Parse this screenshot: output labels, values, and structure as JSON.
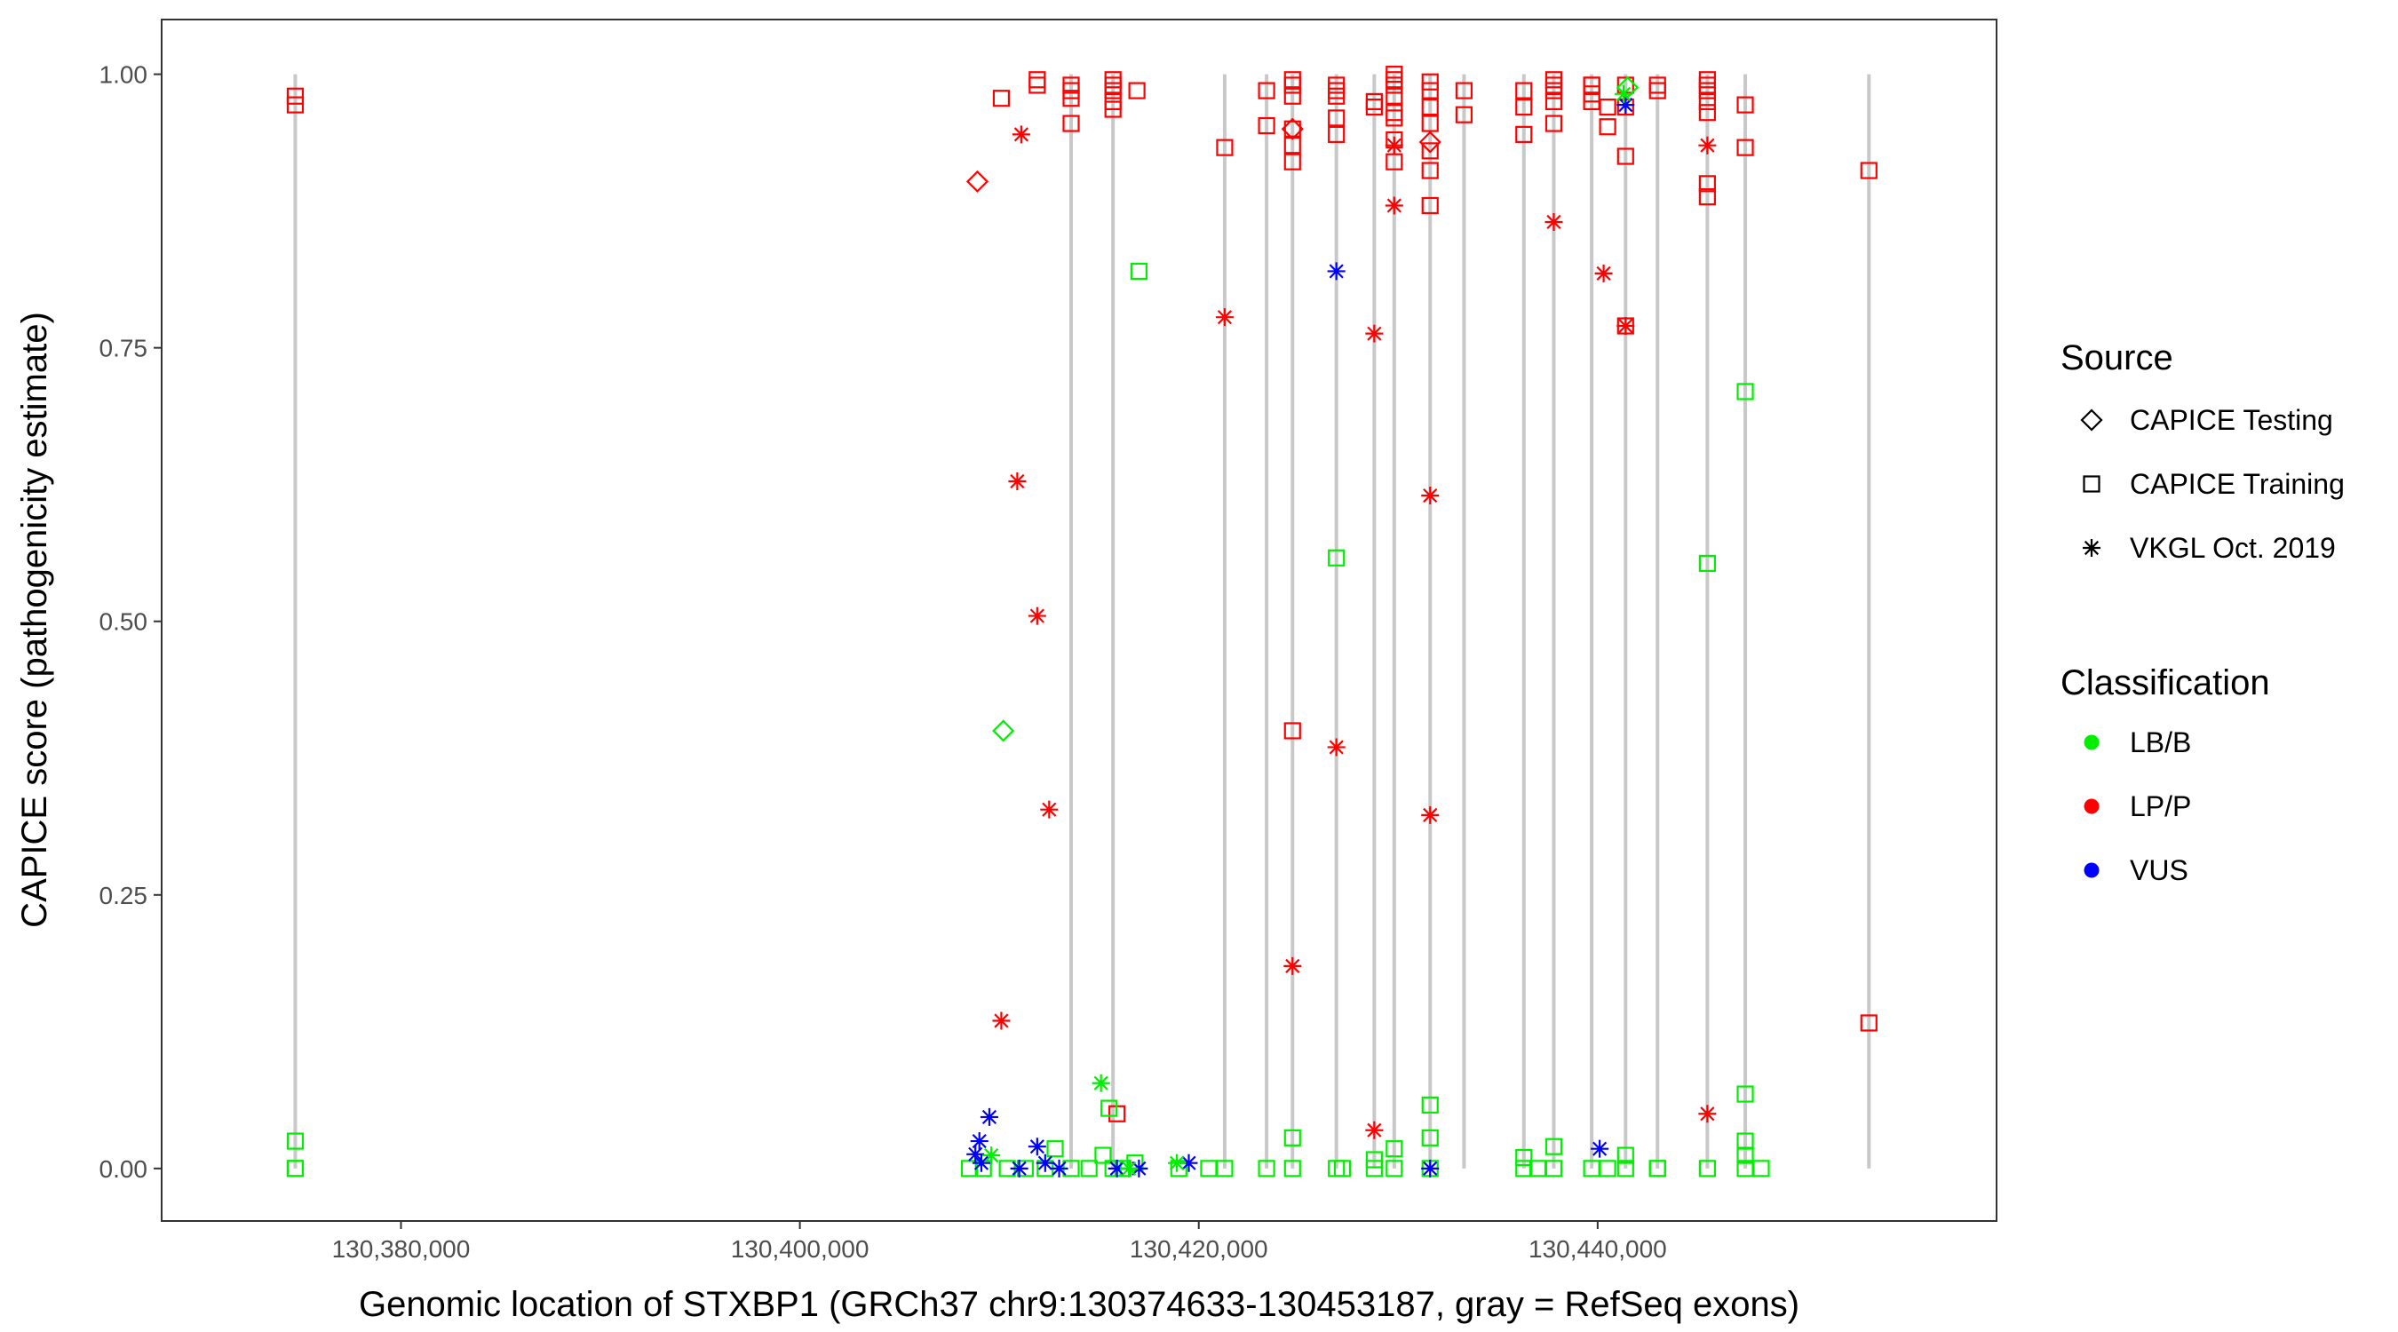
{
  "chart_data": {
    "type": "scatter",
    "title": "",
    "xlabel": "Genomic location of STXBP1 (GRCh37 chr9:130374633-130453187, gray = RefSeq exons)",
    "ylabel": "CAPICE score (pathogenicity estimate)",
    "xlim": [
      130368000,
      130460000
    ],
    "ylim": [
      -0.048,
      1.05
    ],
    "x_ticks": [
      130380000,
      130400000,
      130420000,
      130440000
    ],
    "x_tick_labels": [
      "130,380,000",
      "130,400,000",
      "130,420,000",
      "130,440,000"
    ],
    "y_ticks": [
      0,
      0.25,
      0.5,
      0.75,
      1
    ],
    "y_tick_labels": [
      "0.00",
      "0.25",
      "0.50",
      "0.75",
      "1.00"
    ],
    "grid": false,
    "exons": [
      130374700,
      130413600,
      130415700,
      130421300,
      130423400,
      130424700,
      130426900,
      130428800,
      130429800,
      130431600,
      130433300,
      130436300,
      130437800,
      130439700,
      130441400,
      130443000,
      130445500,
      130447400,
      130453600
    ],
    "legend": {
      "source_title": "Source",
      "source_entries": [
        {
          "label": "CAPICE Testing",
          "shape": "diamond"
        },
        {
          "label": "CAPICE Training",
          "shape": "square"
        },
        {
          "label": "VKGL Oct. 2019",
          "shape": "asterisk"
        }
      ],
      "class_title": "Classification",
      "class_entries": [
        {
          "label": "LB/B",
          "color": "#00ee00"
        },
        {
          "label": "LP/P",
          "color": "#ff0000"
        },
        {
          "label": "VUS",
          "color": "#0000ff"
        }
      ]
    },
    "series": [
      {
        "source": "CAPICE Training",
        "classification": "LP/P",
        "points": [
          [
            130374700,
            0.98
          ],
          [
            130374700,
            0.972
          ],
          [
            130410100,
            0.978
          ],
          [
            130411900,
            0.99
          ],
          [
            130411900,
            0.995
          ],
          [
            130413600,
            0.955
          ],
          [
            130413600,
            0.978
          ],
          [
            130413600,
            0.99
          ],
          [
            130413600,
            0.985
          ],
          [
            130415700,
            0.975
          ],
          [
            130415700,
            0.99
          ],
          [
            130415700,
            0.985
          ],
          [
            130415700,
            0.968
          ],
          [
            130415700,
            0.995
          ],
          [
            130416900,
            0.985
          ],
          [
            130415900,
            0.05
          ],
          [
            130421300,
            0.933
          ],
          [
            130423400,
            0.953
          ],
          [
            130423400,
            0.985
          ],
          [
            130424700,
            0.95
          ],
          [
            130424700,
            0.935
          ],
          [
            130424700,
            0.92
          ],
          [
            130424700,
            0.98
          ],
          [
            130424700,
            0.99
          ],
          [
            130424700,
            0.995
          ],
          [
            130424700,
            0.4
          ],
          [
            130426900,
            0.945
          ],
          [
            130426900,
            0.96
          ],
          [
            130426900,
            0.98
          ],
          [
            130426900,
            0.985
          ],
          [
            130426900,
            0.99
          ],
          [
            130428800,
            0.97
          ],
          [
            130428800,
            0.975
          ],
          [
            130429800,
            0.92
          ],
          [
            130429800,
            0.94
          ],
          [
            130429800,
            0.96
          ],
          [
            130429800,
            0.965
          ],
          [
            130429800,
            0.98
          ],
          [
            130429800,
            0.99
          ],
          [
            130429800,
            0.995
          ],
          [
            130429800,
            1.0
          ],
          [
            130431600,
            0.993
          ],
          [
            130431600,
            0.985
          ],
          [
            130431600,
            0.97
          ],
          [
            130431600,
            0.955
          ],
          [
            130431600,
            0.93
          ],
          [
            130431600,
            0.912
          ],
          [
            130431600,
            0.88
          ],
          [
            130433300,
            0.963
          ],
          [
            130433300,
            0.985
          ],
          [
            130436300,
            0.945
          ],
          [
            130436300,
            0.97
          ],
          [
            130436300,
            0.985
          ],
          [
            130437800,
            0.955
          ],
          [
            130437800,
            0.975
          ],
          [
            130437800,
            0.985
          ],
          [
            130437800,
            0.99
          ],
          [
            130437800,
            0.995
          ],
          [
            130439700,
            0.975
          ],
          [
            130439700,
            0.982
          ],
          [
            130439700,
            0.99
          ],
          [
            130439700,
            0.99
          ],
          [
            130440500,
            0.97
          ],
          [
            130440500,
            0.952
          ],
          [
            130441400,
            0.97
          ],
          [
            130441400,
            0.99
          ],
          [
            130441400,
            0.925
          ],
          [
            130441400,
            0.77
          ],
          [
            130443000,
            0.985
          ],
          [
            130443000,
            0.99
          ],
          [
            130445500,
            0.965
          ],
          [
            130445500,
            0.975
          ],
          [
            130445500,
            0.985
          ],
          [
            130445500,
            0.99
          ],
          [
            130445500,
            0.995
          ],
          [
            130445500,
            0.9
          ],
          [
            130445500,
            0.888
          ],
          [
            130447400,
            0.972
          ],
          [
            130447400,
            0.933
          ],
          [
            130453600,
            0.912
          ],
          [
            130453600,
            0.133
          ]
        ]
      },
      {
        "source": "CAPICE Training",
        "classification": "LB/B",
        "points": [
          [
            130374700,
            0.025
          ],
          [
            130374700,
            0.0
          ],
          [
            130374700,
            0.0
          ],
          [
            130408500,
            0.0
          ],
          [
            130409200,
            0.0
          ],
          [
            130410400,
            0.0
          ],
          [
            130411300,
            0.0
          ],
          [
            130412300,
            0.0
          ],
          [
            130412800,
            0.018
          ],
          [
            130413600,
            0.0
          ],
          [
            130414500,
            0.0
          ],
          [
            130415200,
            0.012
          ],
          [
            130415500,
            0.055
          ],
          [
            130415700,
            0.0
          ],
          [
            130416200,
            0.0
          ],
          [
            130416800,
            0.005
          ],
          [
            130417000,
            0.82
          ],
          [
            130419000,
            0.0
          ],
          [
            130420500,
            0.0
          ],
          [
            130421300,
            0.0
          ],
          [
            130423400,
            0.0
          ],
          [
            130424700,
            0.0
          ],
          [
            130424700,
            0.028
          ],
          [
            130426900,
            0.0
          ],
          [
            130426900,
            0.558
          ],
          [
            130427200,
            0.0
          ],
          [
            130428800,
            0.0
          ],
          [
            130428800,
            0.008
          ],
          [
            130429800,
            0.0
          ],
          [
            130429800,
            0.018
          ],
          [
            130431600,
            0.0
          ],
          [
            130431600,
            0.028
          ],
          [
            130431600,
            0.058
          ],
          [
            130436300,
            0.0
          ],
          [
            130436300,
            0.01
          ],
          [
            130437000,
            0.0
          ],
          [
            130437800,
            0.0
          ],
          [
            130437800,
            0.02
          ],
          [
            130439700,
            0.0
          ],
          [
            130440500,
            0.0
          ],
          [
            130441400,
            0.0
          ],
          [
            130441400,
            0.012
          ],
          [
            130443000,
            0.0
          ],
          [
            130443000,
            0.0
          ],
          [
            130445500,
            0.0
          ],
          [
            130445500,
            0.553
          ],
          [
            130447400,
            0.0
          ],
          [
            130447400,
            0.012
          ],
          [
            130447400,
            0.025
          ],
          [
            130447400,
            0.068
          ],
          [
            130447400,
            0.71
          ],
          [
            130448200,
            0.0
          ]
        ]
      },
      {
        "source": "CAPICE Testing",
        "classification": "LP/P",
        "points": [
          [
            130408900,
            0.902
          ],
          [
            130424700,
            0.95
          ],
          [
            130431600,
            0.938
          ]
        ]
      },
      {
        "source": "CAPICE Testing",
        "classification": "LB/B",
        "points": [
          [
            130410200,
            0.4
          ],
          [
            130441500,
            0.988
          ]
        ]
      },
      {
        "source": "VKGL Oct. 2019",
        "classification": "LP/P",
        "points": [
          [
            130411100,
            0.945
          ],
          [
            130410100,
            0.135
          ],
          [
            130410900,
            0.628
          ],
          [
            130411900,
            0.505
          ],
          [
            130412500,
            0.328
          ],
          [
            130421300,
            0.778
          ],
          [
            130424700,
            0.185
          ],
          [
            130426900,
            0.385
          ],
          [
            130428800,
            0.763
          ],
          [
            130428800,
            0.035
          ],
          [
            130429800,
            0.935
          ],
          [
            130429800,
            0.88
          ],
          [
            130431600,
            0.615
          ],
          [
            130431600,
            0.323
          ],
          [
            130437800,
            0.865
          ],
          [
            130440300,
            0.818
          ],
          [
            130441400,
            0.77
          ],
          [
            130445500,
            0.935
          ],
          [
            130445500,
            0.05
          ]
        ]
      },
      {
        "source": "VKGL Oct. 2019",
        "classification": "VUS",
        "points": [
          [
            130408800,
            0.013
          ],
          [
            130409000,
            0.025
          ],
          [
            130409100,
            0.005
          ],
          [
            130409500,
            0.047
          ],
          [
            130411900,
            0.02
          ],
          [
            130411000,
            0.0
          ],
          [
            130412300,
            0.005
          ],
          [
            130413000,
            0.0
          ],
          [
            130415900,
            0.0
          ],
          [
            130417000,
            0.0
          ],
          [
            130419500,
            0.005
          ],
          [
            130426900,
            0.82
          ],
          [
            130431600,
            0.0
          ],
          [
            130440100,
            0.018
          ],
          [
            130441400,
            0.972
          ]
        ]
      },
      {
        "source": "VKGL Oct. 2019",
        "classification": "LB/B",
        "points": [
          [
            130409600,
            0.012
          ],
          [
            130415100,
            0.078
          ],
          [
            130416500,
            0.0
          ],
          [
            130418900,
            0.005
          ],
          [
            130441300,
            0.982
          ]
        ]
      }
    ]
  }
}
